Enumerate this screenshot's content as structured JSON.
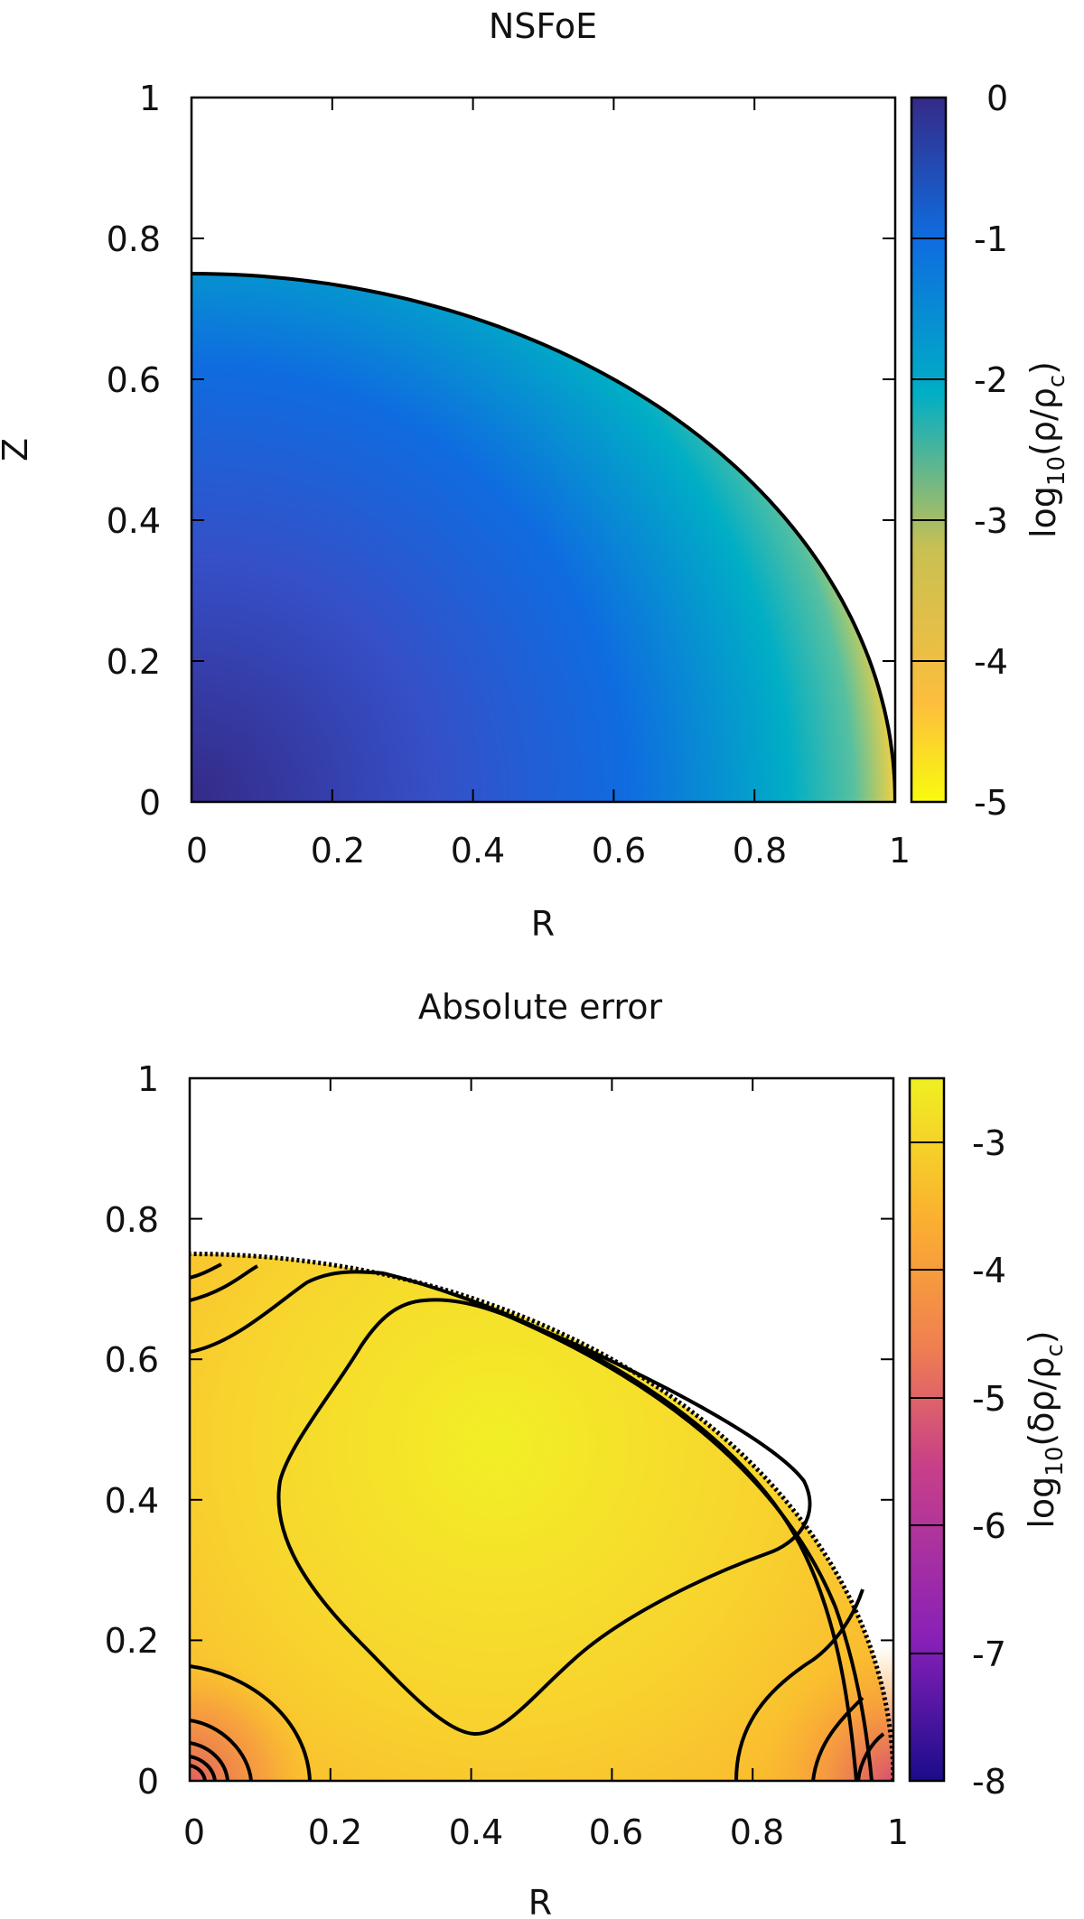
{
  "chart_data": [
    {
      "type": "heatmap",
      "title": "NSFoE",
      "xlabel": "R",
      "ylabel": "Z",
      "xlim": [
        0,
        1
      ],
      "ylim": [
        0,
        1
      ],
      "x_ticks": [
        "0",
        "0.2",
        "0.4",
        "0.6",
        "0.8",
        "1"
      ],
      "y_ticks": [
        "0",
        "0.2",
        "0.4",
        "0.6",
        "0.8",
        "1"
      ],
      "colorbar": {
        "label": "log10(ρ/ρc)",
        "label_main": "log",
        "label_sub": "10",
        "label_rest": "(ρ/ρ",
        "label_sub2": "c",
        "label_end": ")",
        "range": [
          -5,
          0
        ],
        "ticks": [
          "0",
          "-1",
          "-2",
          "-3",
          "-4",
          "-5"
        ],
        "colors": [
          "#f9fb0e",
          "#fdbe3d",
          "#c8c052",
          "#00aec5",
          "#0f6ce0",
          "#352a87"
        ]
      },
      "surface": {
        "equatorial_radius": 1.0,
        "polar_radius": 0.75
      },
      "grid": false
    },
    {
      "type": "heatmap",
      "title": "Absolute error",
      "xlabel": "R",
      "ylabel": "",
      "xlim": [
        0,
        1
      ],
      "ylim": [
        0,
        1
      ],
      "x_ticks": [
        "0",
        "0.2",
        "0.4",
        "0.6",
        "0.8",
        "1"
      ],
      "y_ticks": [
        "0",
        "0.2",
        "0.4",
        "0.6",
        "0.8",
        "1"
      ],
      "colorbar": {
        "label": "log10(δρ/ρc)",
        "label_main": "log",
        "label_sub": "10",
        "label_rest": "(δρ/ρ",
        "label_sub2": "c",
        "label_end": ")",
        "range": [
          -8,
          -2.5
        ],
        "ticks": [
          "-3",
          "-4",
          "-5",
          "-6",
          "-7",
          "-8"
        ],
        "colors": [
          "#f0f022",
          "#fbb030",
          "#f08050",
          "#c84088",
          "#8820b8",
          "#1a0c8a"
        ]
      },
      "surface": {
        "equatorial_radius": 1.0,
        "polar_radius": 0.75
      },
      "grid": false
    }
  ]
}
